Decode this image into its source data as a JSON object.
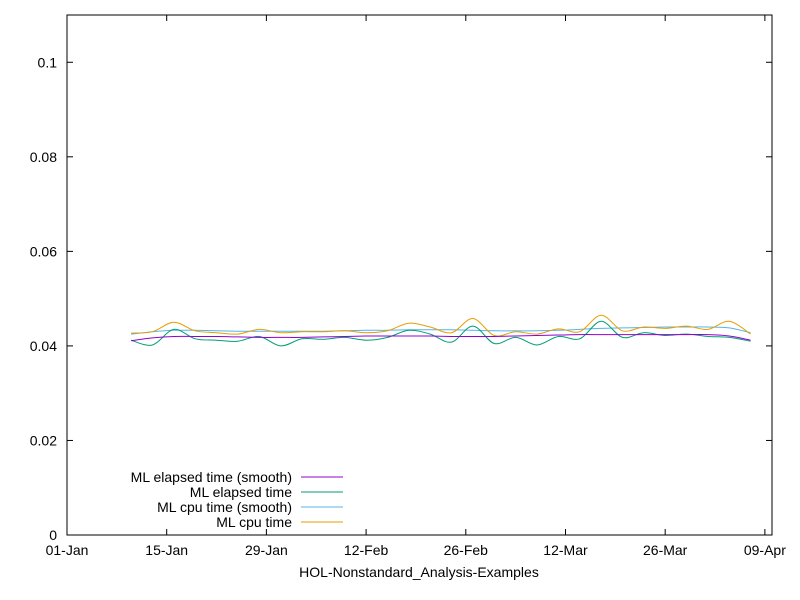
{
  "chart_data": {
    "type": "line",
    "xlabel": "HOL-Nonstandard_Analysis-Examples",
    "ylabel": "",
    "title": "",
    "x_ticks": [
      "01-Jan",
      "15-Jan",
      "29-Jan",
      "12-Feb",
      "26-Feb",
      "12-Mar",
      "26-Mar",
      "09-Apr"
    ],
    "y_ticks": [
      "0",
      "0.02",
      "0.04",
      "0.06",
      "0.08",
      "0.1"
    ],
    "xlim": [
      "2024-01-01",
      "2024-04-09"
    ],
    "ylim": [
      0,
      0.11
    ],
    "grid": false,
    "legend_position": "bottom-left",
    "x": [
      "2024-01-10",
      "2024-01-13",
      "2024-01-16",
      "2024-01-19",
      "2024-01-22",
      "2024-01-25",
      "2024-01-28",
      "2024-01-31",
      "2024-02-03",
      "2024-02-06",
      "2024-02-09",
      "2024-02-12",
      "2024-02-15",
      "2024-02-18",
      "2024-02-21",
      "2024-02-24",
      "2024-02-27",
      "2024-03-01",
      "2024-03-04",
      "2024-03-07",
      "2024-03-10",
      "2024-03-13",
      "2024-03-16",
      "2024-03-19",
      "2024-03-22",
      "2024-03-25",
      "2024-03-28",
      "2024-03-31",
      "2024-04-03",
      "2024-04-06"
    ],
    "series": [
      {
        "name": "ML elapsed time (smooth)",
        "color": "#9400d3",
        "values": [
          0.0411,
          0.0417,
          0.042,
          0.042,
          0.042,
          0.0419,
          0.0418,
          0.0418,
          0.0418,
          0.0419,
          0.042,
          0.0421,
          0.0421,
          0.0421,
          0.0421,
          0.042,
          0.042,
          0.042,
          0.0421,
          0.0422,
          0.0423,
          0.0424,
          0.0424,
          0.0424,
          0.0424,
          0.0424,
          0.0424,
          0.0424,
          0.0421,
          0.0412
        ]
      },
      {
        "name": "ML elapsed time",
        "color": "#009e73",
        "values": [
          0.0412,
          0.0402,
          0.0435,
          0.0415,
          0.0412,
          0.041,
          0.042,
          0.04,
          0.0415,
          0.0414,
          0.0418,
          0.0412,
          0.0418,
          0.0433,
          0.0425,
          0.0408,
          0.0442,
          0.0405,
          0.0418,
          0.0402,
          0.042,
          0.0415,
          0.0452,
          0.0418,
          0.0428,
          0.0422,
          0.0425,
          0.042,
          0.0418,
          0.041
        ]
      },
      {
        "name": "ML cpu time (smooth)",
        "color": "#56b4e9",
        "values": [
          0.0425,
          0.043,
          0.0433,
          0.0433,
          0.0432,
          0.0431,
          0.0431,
          0.0431,
          0.0431,
          0.0431,
          0.0432,
          0.0433,
          0.0433,
          0.0434,
          0.0434,
          0.0434,
          0.0433,
          0.0432,
          0.0432,
          0.0432,
          0.0433,
          0.0435,
          0.0437,
          0.0438,
          0.0439,
          0.044,
          0.044,
          0.044,
          0.0438,
          0.0428
        ]
      },
      {
        "name": "ML cpu time",
        "color": "#e69f00",
        "values": [
          0.0427,
          0.043,
          0.045,
          0.0432,
          0.0428,
          0.0425,
          0.0435,
          0.0428,
          0.043,
          0.043,
          0.0432,
          0.0428,
          0.0432,
          0.0448,
          0.044,
          0.0428,
          0.0458,
          0.0422,
          0.043,
          0.0425,
          0.0436,
          0.043,
          0.0465,
          0.0432,
          0.044,
          0.0437,
          0.0442,
          0.0435,
          0.0452,
          0.0425
        ]
      }
    ]
  }
}
